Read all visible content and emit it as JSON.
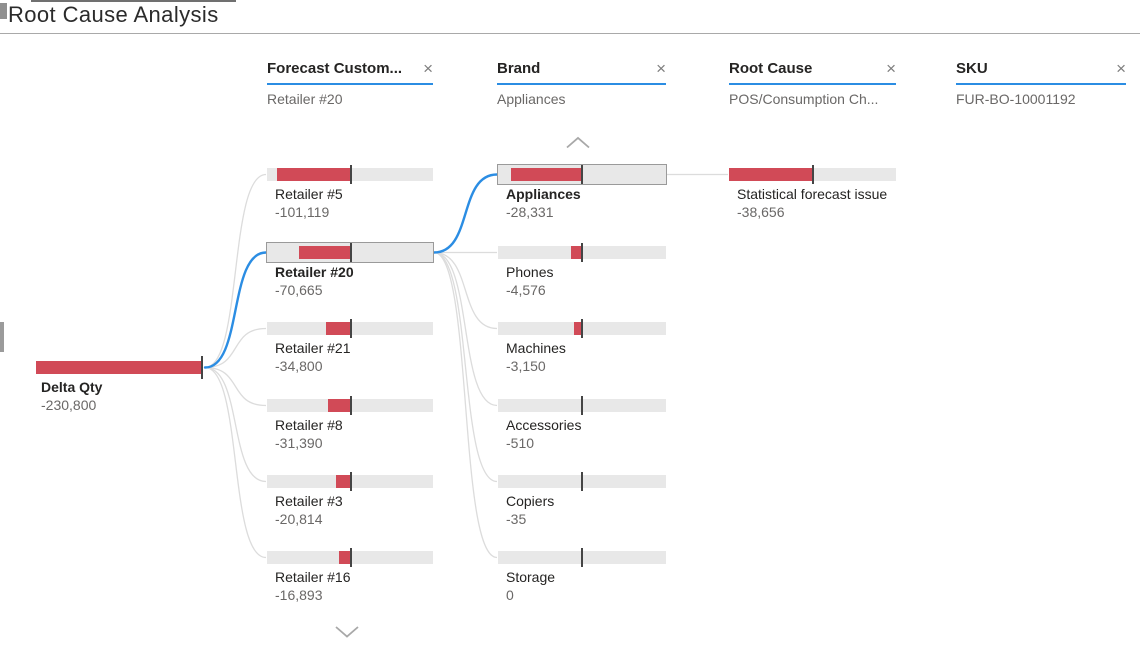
{
  "header": {
    "title": "Root Cause Analysis"
  },
  "columns": [
    {
      "label": "Forecast Custom...",
      "close_icon": "×",
      "selected_value": "Retailer #20"
    },
    {
      "label": "Brand",
      "close_icon": "×",
      "selected_value": "Appliances"
    },
    {
      "label": "Root Cause",
      "close_icon": "×",
      "selected_value": "POS/Consumption Ch..."
    },
    {
      "label": "SKU",
      "close_icon": "×",
      "selected_value": "FUR-BO-10001192"
    }
  ],
  "icons": {
    "scroll_up": "chevron-up-icon",
    "scroll_down": "chevron-down-icon",
    "remove_level": "close-icon"
  },
  "colors": {
    "bar_negative": "#d14a57",
    "bar_track": "#e8e8e8",
    "selected_path_blue": "#2b8de3",
    "header_underline_blue": "#2b8de3",
    "tick_mark": "#454545"
  },
  "chart_data": {
    "type": "bar",
    "subtype": "decomposition-tree",
    "title": "Root Cause Analysis",
    "measure": "Delta Qty",
    "legend_position": "none",
    "grid": false,
    "root": {
      "label": "Delta Qty",
      "value": -230800,
      "display_value": "-230,800"
    },
    "levels": [
      {
        "field": "Forecast Custom...",
        "selected_node": "Retailer #20",
        "nodes": [
          {
            "label": "Retailer #5",
            "value": -101119,
            "display_value": "-101,119",
            "selected": false
          },
          {
            "label": "Retailer #20",
            "value": -70665,
            "display_value": "-70,665",
            "selected": true
          },
          {
            "label": "Retailer #21",
            "value": -34800,
            "display_value": "-34,800",
            "selected": false
          },
          {
            "label": "Retailer #8",
            "value": -31390,
            "display_value": "-31,390",
            "selected": false
          },
          {
            "label": "Retailer #3",
            "value": -20814,
            "display_value": "-20,814",
            "selected": false
          },
          {
            "label": "Retailer #16",
            "value": -16893,
            "display_value": "-16,893",
            "selected": false
          }
        ]
      },
      {
        "field": "Brand",
        "selected_node": "Appliances",
        "nodes": [
          {
            "label": "Appliances",
            "value": -28331,
            "display_value": "-28,331",
            "selected": true
          },
          {
            "label": "Phones",
            "value": -4576,
            "display_value": "-4,576",
            "selected": false
          },
          {
            "label": "Machines",
            "value": -3150,
            "display_value": "-3,150",
            "selected": false
          },
          {
            "label": "Accessories",
            "value": -510,
            "display_value": "-510",
            "selected": false
          },
          {
            "label": "Copiers",
            "value": -35,
            "display_value": "-35",
            "selected": false
          },
          {
            "label": "Storage",
            "value": 0,
            "display_value": "0",
            "selected": false
          }
        ]
      },
      {
        "field": "Root Cause",
        "selected_node": null,
        "nodes": [
          {
            "label": "Statistical forecast issue",
            "value": -38656,
            "display_value": "-38,656",
            "selected": false
          }
        ]
      }
    ]
  }
}
